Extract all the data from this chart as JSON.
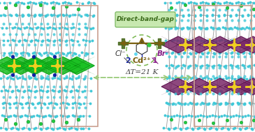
{
  "bg_color": "#ffffff",
  "left_box_color": "#c9a090",
  "right_box_color": "#c9a090",
  "label_direct_band_gap": "Direct-band-gap",
  "label_cl": "Cl⁻",
  "label_br": "Br⁻",
  "label_cd": "Cd²⁺",
  "label_2": "2",
  "label_1": "1",
  "label_delta_t": "ΔT=21 K",
  "arrow_color": "#7a6010",
  "delta_t_arrow_color": "#9aca7a",
  "cross_color": "#4a6a20",
  "mol_circle_color": "#8db87a",
  "dbg_box_color": "#c8e8b0",
  "dbg_text_color": "#3a6a1a",
  "figsize": [
    3.65,
    1.89
  ],
  "dpi": 100,
  "left_bg": "#d8f0e8",
  "right_bg": "#f0e8f4",
  "green_oct": "#18c020",
  "green_oct_edge": "#0a8010",
  "purple_oct": "#7a2868",
  "purple_oct_edge": "#4a1040",
  "yellow": "#f0d020",
  "cyan": "#40c8d8",
  "green_sphere": "#20c840",
  "dark_blue": "#1020aa",
  "gray_pillar": "#888888",
  "gray_bg": "#b0b0b0"
}
